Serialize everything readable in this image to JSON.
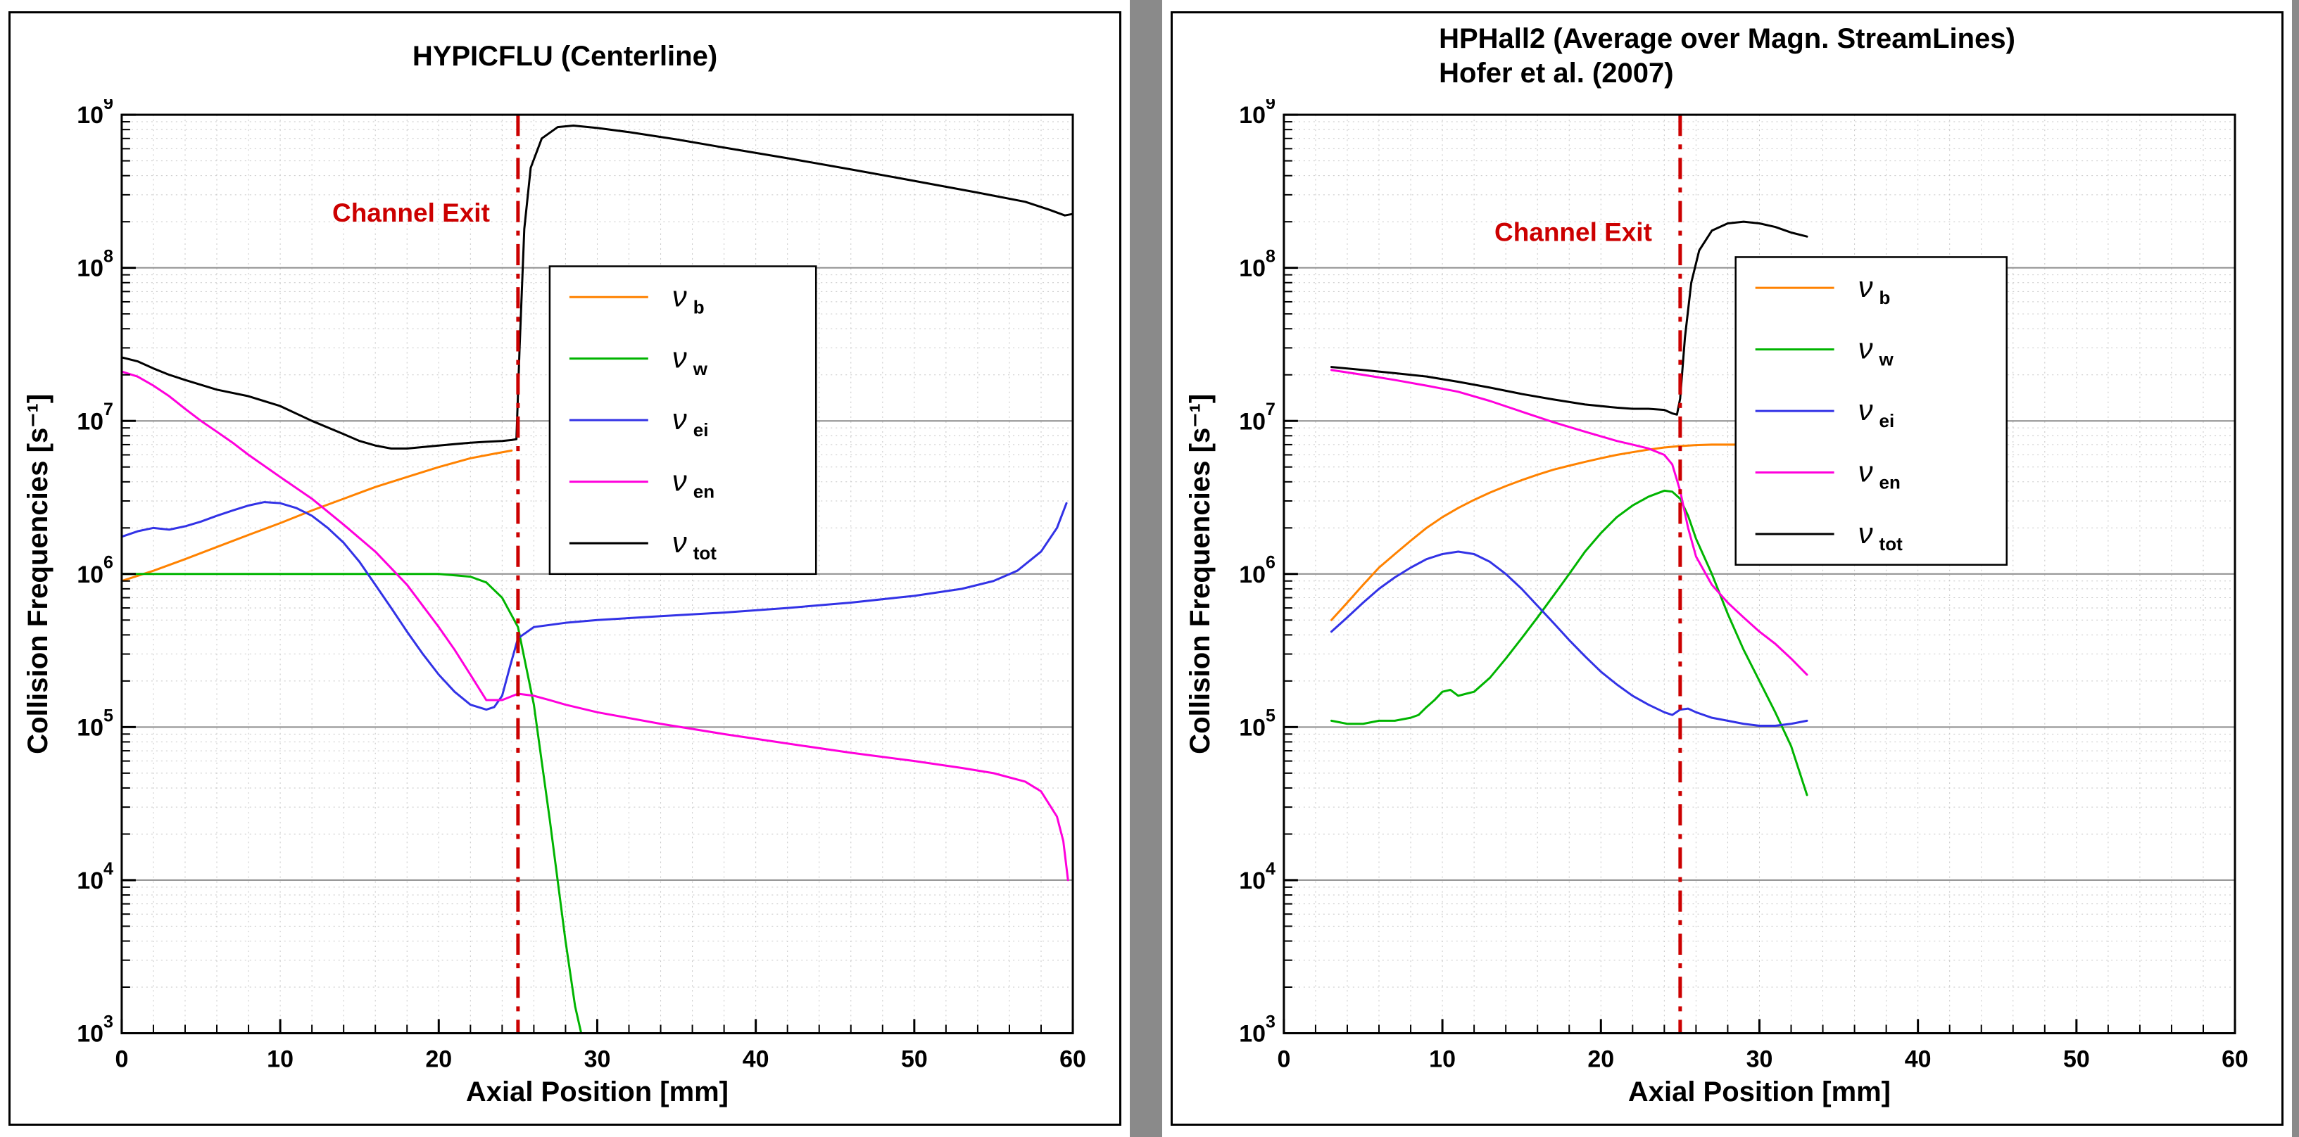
{
  "colors": {
    "page_background": "#8a8a8a",
    "panel_background": "#ffffff",
    "frame": "#000000",
    "grid_major": "#8c8c8c",
    "grid_minor": "#c6c6c6",
    "annotation_red": "#cc0000"
  },
  "chart_data": [
    {
      "type": "line",
      "title": "HYPICFLU (Centerline)",
      "title_lines": [
        "HYPICFLU (Centerline)"
      ],
      "xlabel": "Axial Position [mm]",
      "ylabel": "Collision Frequencies [s⁻¹]",
      "x_range": [
        0,
        60
      ],
      "x_major_step": 10,
      "x_minor_step": 2,
      "y_exp_range": [
        3,
        9
      ],
      "y_scale": "log",
      "grid": true,
      "legend_position": "upper-center-right",
      "legend_box": {
        "x": 0.45,
        "y": 0.165,
        "w": 0.28,
        "h": 0.335
      },
      "annotation": {
        "text": "Channel Exit",
        "line_x": 25,
        "text_y": 200000000.0
      },
      "series": [
        {
          "name": "nu_b",
          "label": "ν b",
          "sub": "b",
          "color": "#ff8200",
          "x": [
            0,
            2,
            4,
            6,
            8,
            10,
            12,
            14,
            16,
            18,
            20,
            22,
            23.5,
            24.6
          ],
          "y": [
            900000.0,
            1050000.0,
            1250000.0,
            1500000.0,
            1800000.0,
            2150000.0,
            2600000.0,
            3100000.0,
            3700000.0,
            4300000.0,
            5000000.0,
            5700000.0,
            6100000.0,
            6400000.0
          ]
        },
        {
          "name": "nu_w",
          "label": "ν w",
          "sub": "w",
          "color": "#00b400",
          "x": [
            0,
            4,
            8,
            12,
            16,
            20,
            22,
            23,
            24,
            25,
            26,
            27,
            28,
            28.6,
            29.2
          ],
          "y": [
            1000000.0,
            1000000.0,
            1000000.0,
            1000000.0,
            1000000.0,
            1000000.0,
            960000.0,
            880000.0,
            700000.0,
            450000.0,
            140000.0,
            25000.0,
            4000.0,
            1500.0,
            800.0
          ]
        },
        {
          "name": "nu_ei",
          "label": "ν ei",
          "sub": "ei",
          "color": "#3232e6",
          "x": [
            0,
            1,
            2,
            3,
            4,
            5,
            6,
            7,
            8,
            9,
            10,
            11,
            12,
            13,
            14,
            15,
            16,
            17,
            18,
            19,
            20,
            21,
            22,
            23,
            23.5,
            24,
            24.5,
            25,
            26,
            28,
            30,
            34,
            38,
            42,
            46,
            50,
            53,
            55,
            56.5,
            58,
            59,
            59.6
          ],
          "y": [
            1750000.0,
            1900000.0,
            2000000.0,
            1950000.0,
            2050000.0,
            2200000.0,
            2400000.0,
            2600000.0,
            2800000.0,
            2950000.0,
            2900000.0,
            2700000.0,
            2400000.0,
            2000000.0,
            1600000.0,
            1200000.0,
            850000.0,
            600000.0,
            420000.0,
            300000.0,
            220000.0,
            170000.0,
            140000.0,
            130000.0,
            135000.0,
            160000.0,
            250000.0,
            380000.0,
            450000.0,
            480000.0,
            500000.0,
            530000.0,
            560000.0,
            600000.0,
            650000.0,
            720000.0,
            800000.0,
            900000.0,
            1050000.0,
            1400000.0,
            2000000.0,
            2900000.0
          ]
        },
        {
          "name": "nu_en",
          "label": "ν en",
          "sub": "en",
          "color": "#ff00dc",
          "x": [
            0,
            1,
            2,
            3,
            4,
            5,
            6,
            7,
            8,
            10,
            12,
            14,
            16,
            18,
            20,
            21,
            22,
            23,
            24,
            25,
            26,
            27,
            28,
            30,
            34,
            38,
            42,
            46,
            50,
            53,
            55,
            57,
            58,
            59,
            59.4,
            59.7
          ],
          "y": [
            21000000.0,
            19500000.0,
            17000000.0,
            14500000.0,
            12000000.0,
            10000000.0,
            8500000.0,
            7200000.0,
            6000000.0,
            4300000.0,
            3100000.0,
            2100000.0,
            1400000.0,
            850000.0,
            450000.0,
            320000.0,
            220000.0,
            150000.0,
            150000.0,
            165000.0,
            160000.0,
            150000.0,
            140000.0,
            125000.0,
            105000.0,
            90000.0,
            78000.0,
            68000.0,
            60000.0,
            54000.0,
            50000.0,
            44000.0,
            38000.0,
            26000.0,
            18000.0,
            10000.0
          ]
        },
        {
          "name": "nu_tot",
          "label": "ν tot",
          "sub": "tot",
          "color": "#000000",
          "x": [
            0,
            1,
            2,
            3,
            4,
            6,
            8,
            10,
            12,
            14,
            15,
            16,
            17,
            18,
            20,
            22,
            23,
            24,
            24.6,
            24.9,
            25.1,
            25.4,
            25.8,
            26.5,
            27.5,
            28.5,
            30,
            32,
            35,
            38,
            42,
            46,
            50,
            54,
            57,
            58.5,
            59.5,
            60
          ],
          "y": [
            26000000.0,
            24500000.0,
            22000000.0,
            20000000.0,
            18500000.0,
            16000000.0,
            14500000.0,
            12500000.0,
            10000000.0,
            8200000.0,
            7400000.0,
            6900000.0,
            6600000.0,
            6600000.0,
            6900000.0,
            7200000.0,
            7300000.0,
            7400000.0,
            7500000.0,
            7600000.0,
            30000000.0,
            180000000.0,
            450000000.0,
            700000000.0,
            830000000.0,
            850000000.0,
            820000000.0,
            770000000.0,
            690000000.0,
            610000000.0,
            520000000.0,
            440000000.0,
            370000000.0,
            310000000.0,
            270000000.0,
            240000000.0,
            220000000.0,
            225000000.0
          ]
        }
      ]
    },
    {
      "type": "line",
      "title": "HPHall2 (Average over Magn. StreamLines) Hofer et al. (2007)",
      "title_lines": [
        "HPHall2 (Average over Magn. StreamLines)",
        "Hofer et al. (2007)"
      ],
      "xlabel": "Axial Position [mm]",
      "ylabel": "Collision Frequencies [s⁻¹]",
      "x_range": [
        0,
        60
      ],
      "x_major_step": 10,
      "x_minor_step": 2,
      "y_exp_range": [
        3,
        9
      ],
      "y_scale": "log",
      "grid": true,
      "legend_position": "upper-center-right",
      "legend_box": {
        "x": 0.475,
        "y": 0.155,
        "w": 0.285,
        "h": 0.335
      },
      "annotation": {
        "text": "Channel Exit",
        "line_x": 25,
        "text_y": 150000000.0
      },
      "series": [
        {
          "name": "nu_b",
          "label": "ν b",
          "sub": "b",
          "color": "#ff8200",
          "x": [
            3,
            4,
            5,
            6,
            7,
            8,
            9,
            10,
            11,
            12,
            13,
            14,
            15,
            16,
            17,
            18,
            19,
            20,
            21,
            22,
            23,
            24,
            25,
            26,
            27,
            28,
            29,
            30,
            31,
            32,
            33
          ],
          "y": [
            500000.0,
            650000.0,
            850000.0,
            1100000.0,
            1350000.0,
            1650000.0,
            2000000.0,
            2350000.0,
            2700000.0,
            3050000.0,
            3400000.0,
            3750000.0,
            4100000.0,
            4450000.0,
            4800000.0,
            5100000.0,
            5400000.0,
            5700000.0,
            6000000.0,
            6250000.0,
            6500000.0,
            6700000.0,
            6850000.0,
            6950000.0,
            7000000.0,
            7000000.0,
            7000000.0,
            7000000.0,
            7000000.0,
            7000000.0,
            7000000.0
          ]
        },
        {
          "name": "nu_w",
          "label": "ν w",
          "sub": "w",
          "color": "#00b400",
          "x": [
            3,
            4,
            5,
            6,
            7,
            8,
            8.5,
            9,
            9.5,
            10,
            10.5,
            11,
            11.5,
            12,
            13,
            14,
            15,
            16,
            17,
            18,
            19,
            20,
            21,
            22,
            23,
            24,
            24.5,
            25,
            25.5,
            26,
            27,
            28,
            29,
            30,
            31,
            32,
            33
          ],
          "y": [
            110000.0,
            105000.0,
            105000.0,
            110000.0,
            110000.0,
            115000.0,
            120000.0,
            135000.0,
            150000.0,
            170000.0,
            175000.0,
            160000.0,
            165000.0,
            170000.0,
            210000.0,
            280000.0,
            380000.0,
            520000.0,
            720000.0,
            1000000.0,
            1400000.0,
            1850000.0,
            2350000.0,
            2800000.0,
            3200000.0,
            3500000.0,
            3450000.0,
            3100000.0,
            2400000.0,
            1700000.0,
            1000000.0,
            550000.0,
            320000.0,
            200000.0,
            125000.0,
            75000.0,
            36000.0
          ]
        },
        {
          "name": "nu_ei",
          "label": "ν ei",
          "sub": "ei",
          "color": "#3232e6",
          "x": [
            3,
            4,
            5,
            6,
            7,
            8,
            9,
            10,
            11,
            12,
            13,
            14,
            15,
            16,
            17,
            18,
            19,
            20,
            21,
            22,
            23,
            24,
            24.5,
            25,
            25.5,
            26,
            27,
            28,
            29,
            30,
            31,
            32,
            33
          ],
          "y": [
            420000.0,
            520000.0,
            650000.0,
            800000.0,
            950000.0,
            1100000.0,
            1250000.0,
            1350000.0,
            1400000.0,
            1350000.0,
            1200000.0,
            1000000.0,
            800000.0,
            620000.0,
            480000.0,
            370000.0,
            290000.0,
            230000.0,
            190000.0,
            160000.0,
            140000.0,
            125000.0,
            120000.0,
            130000.0,
            132000.0,
            125000.0,
            115000.0,
            110000.0,
            105000.0,
            102000.0,
            102000.0,
            105000.0,
            110000.0
          ]
        },
        {
          "name": "nu_en",
          "label": "ν en",
          "sub": "en",
          "color": "#ff00dc",
          "x": [
            3,
            5,
            7,
            9,
            11,
            13,
            15,
            17,
            19,
            21,
            22,
            23,
            24,
            24.5,
            25,
            25.5,
            26,
            27,
            28,
            29,
            30,
            31,
            32,
            33
          ],
          "y": [
            21500000.0,
            20000000.0,
            18500000.0,
            17000000.0,
            15500000.0,
            13500000.0,
            11500000.0,
            9800000.0,
            8500000.0,
            7400000.0,
            7000000.0,
            6600000.0,
            6000000.0,
            5200000.0,
            3500000.0,
            2000000.0,
            1300000.0,
            850000.0,
            650000.0,
            520000.0,
            420000.0,
            350000.0,
            280000.0,
            220000.0
          ]
        },
        {
          "name": "nu_tot",
          "label": "ν tot",
          "sub": "tot",
          "color": "#000000",
          "x": [
            3,
            5,
            7,
            9,
            11,
            13,
            15,
            17,
            19,
            21,
            22,
            23,
            24,
            24.5,
            24.8,
            25,
            25.3,
            25.7,
            26.2,
            27,
            28,
            29,
            30,
            31,
            32,
            33
          ],
          "y": [
            22500000.0,
            21500000.0,
            20500000.0,
            19500000.0,
            18000000.0,
            16500000.0,
            15000000.0,
            13800000.0,
            12800000.0,
            12200000.0,
            12000000.0,
            12000000.0,
            11800000.0,
            11200000.0,
            11000000.0,
            14000000.0,
            35000000.0,
            80000000.0,
            130000000.0,
            175000000.0,
            195000000.0,
            200000000.0,
            195000000.0,
            185000000.0,
            170000000.0,
            160000000.0
          ]
        }
      ]
    }
  ]
}
